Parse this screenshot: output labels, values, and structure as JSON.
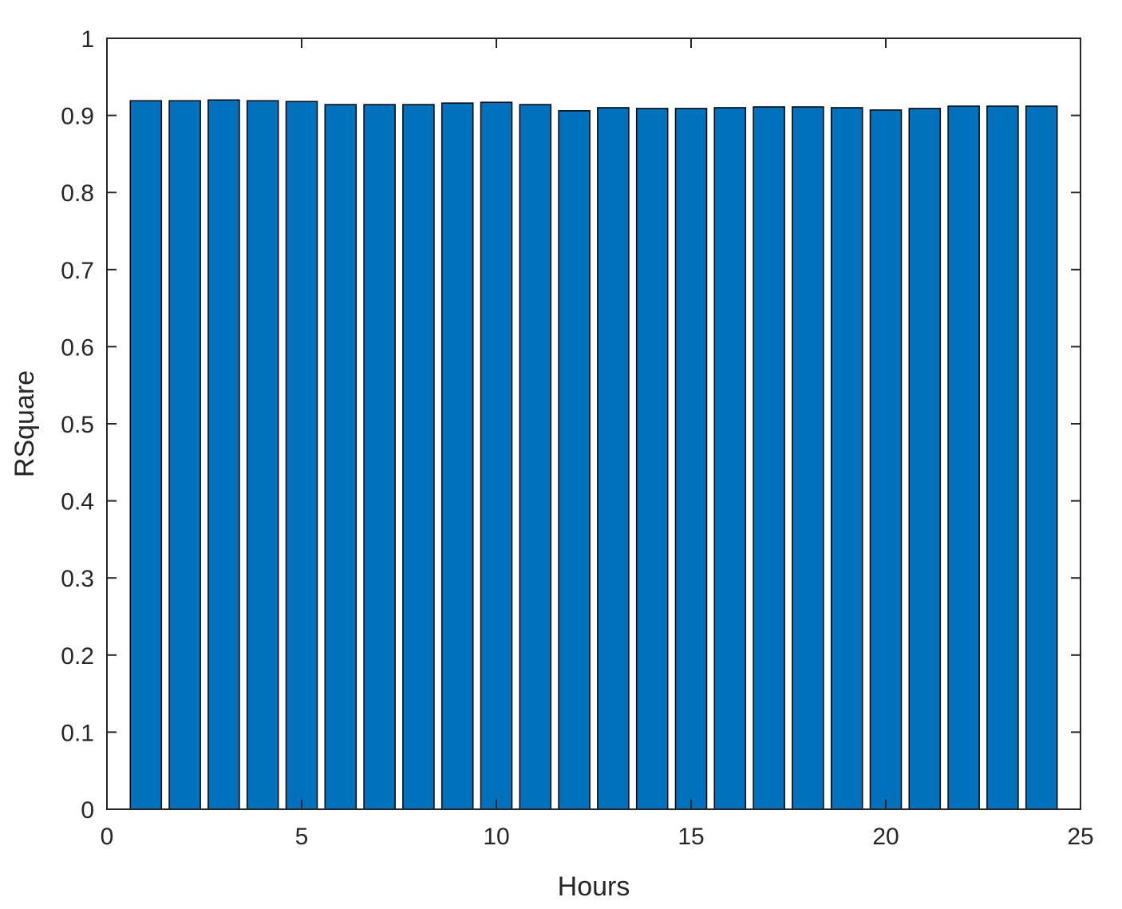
{
  "chart_data": {
    "type": "bar",
    "x": [
      1,
      2,
      3,
      4,
      5,
      6,
      7,
      8,
      9,
      10,
      11,
      12,
      13,
      14,
      15,
      16,
      17,
      18,
      19,
      20,
      21,
      22,
      23,
      24
    ],
    "values": [
      0.919,
      0.919,
      0.92,
      0.919,
      0.918,
      0.914,
      0.914,
      0.914,
      0.916,
      0.917,
      0.914,
      0.906,
      0.91,
      0.909,
      0.909,
      0.91,
      0.911,
      0.911,
      0.91,
      0.907,
      0.909,
      0.912,
      0.912,
      0.912
    ],
    "xlabel": "Hours",
    "ylabel": "RSquare",
    "xlim": [
      0,
      25
    ],
    "ylim": [
      0,
      1
    ],
    "xticks": [
      "0",
      "5",
      "10",
      "15",
      "20",
      "25"
    ],
    "yticks": [
      "0",
      "0.1",
      "0.2",
      "0.3",
      "0.4",
      "0.5",
      "0.6",
      "0.7",
      "0.8",
      "0.9",
      "1"
    ],
    "grid": false,
    "colors": {
      "bar": "#0072BD",
      "bar_edge": "#000000",
      "axis": "#262626"
    }
  }
}
